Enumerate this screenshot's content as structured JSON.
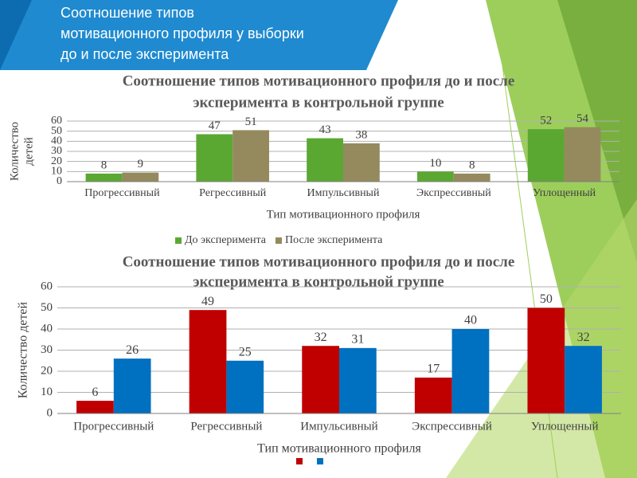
{
  "slide_title": [
    "Соотношение типов",
    "мотивационного профиля у выборки",
    "до и после эксперимента"
  ],
  "chart_data": [
    {
      "type": "bar",
      "title": [
        "Соотношение типов мотивационного профиля до и после",
        "эксперимента в контрольной группе"
      ],
      "ylabel": [
        "Количество",
        "детей"
      ],
      "xlabel": "Тип мотивационного профиля",
      "categories": [
        "Прогрессивный",
        "Регрессивный",
        "Импульсивный",
        "Экспрессивный",
        "Уплощенный"
      ],
      "series": [
        {
          "name": "До эксперимента",
          "color": "#5aa832",
          "values": [
            8,
            47,
            43,
            10,
            52
          ]
        },
        {
          "name": "После эксперимента",
          "color": "#948a5e",
          "values": [
            9,
            51,
            38,
            8,
            54
          ]
        }
      ],
      "ylim": [
        0,
        60
      ],
      "yticks": [
        0,
        10,
        20,
        30,
        40,
        50,
        60
      ],
      "grid": true,
      "legend": "bottom"
    },
    {
      "type": "bar",
      "title": [
        "Соотношение типов мотивационного профиля до и после",
        "эксперимента в контрольной группе"
      ],
      "ylabel": [
        "Количество детей"
      ],
      "xlabel": "Тип мотивационного профиля",
      "categories": [
        "Прогрессивный",
        "Регрессивный",
        "Импульсивный",
        "Экспрессивный",
        "Уплощенный"
      ],
      "series": [
        {
          "color": "#c00000",
          "values": [
            6,
            49,
            32,
            17,
            50
          ]
        },
        {
          "color": "#0070c0",
          "values": [
            26,
            25,
            31,
            40,
            32
          ]
        }
      ],
      "ylim": [
        0,
        60
      ],
      "yticks": [
        0,
        10,
        20,
        30,
        40,
        50,
        60
      ],
      "grid": true,
      "legend": "bottom"
    }
  ]
}
